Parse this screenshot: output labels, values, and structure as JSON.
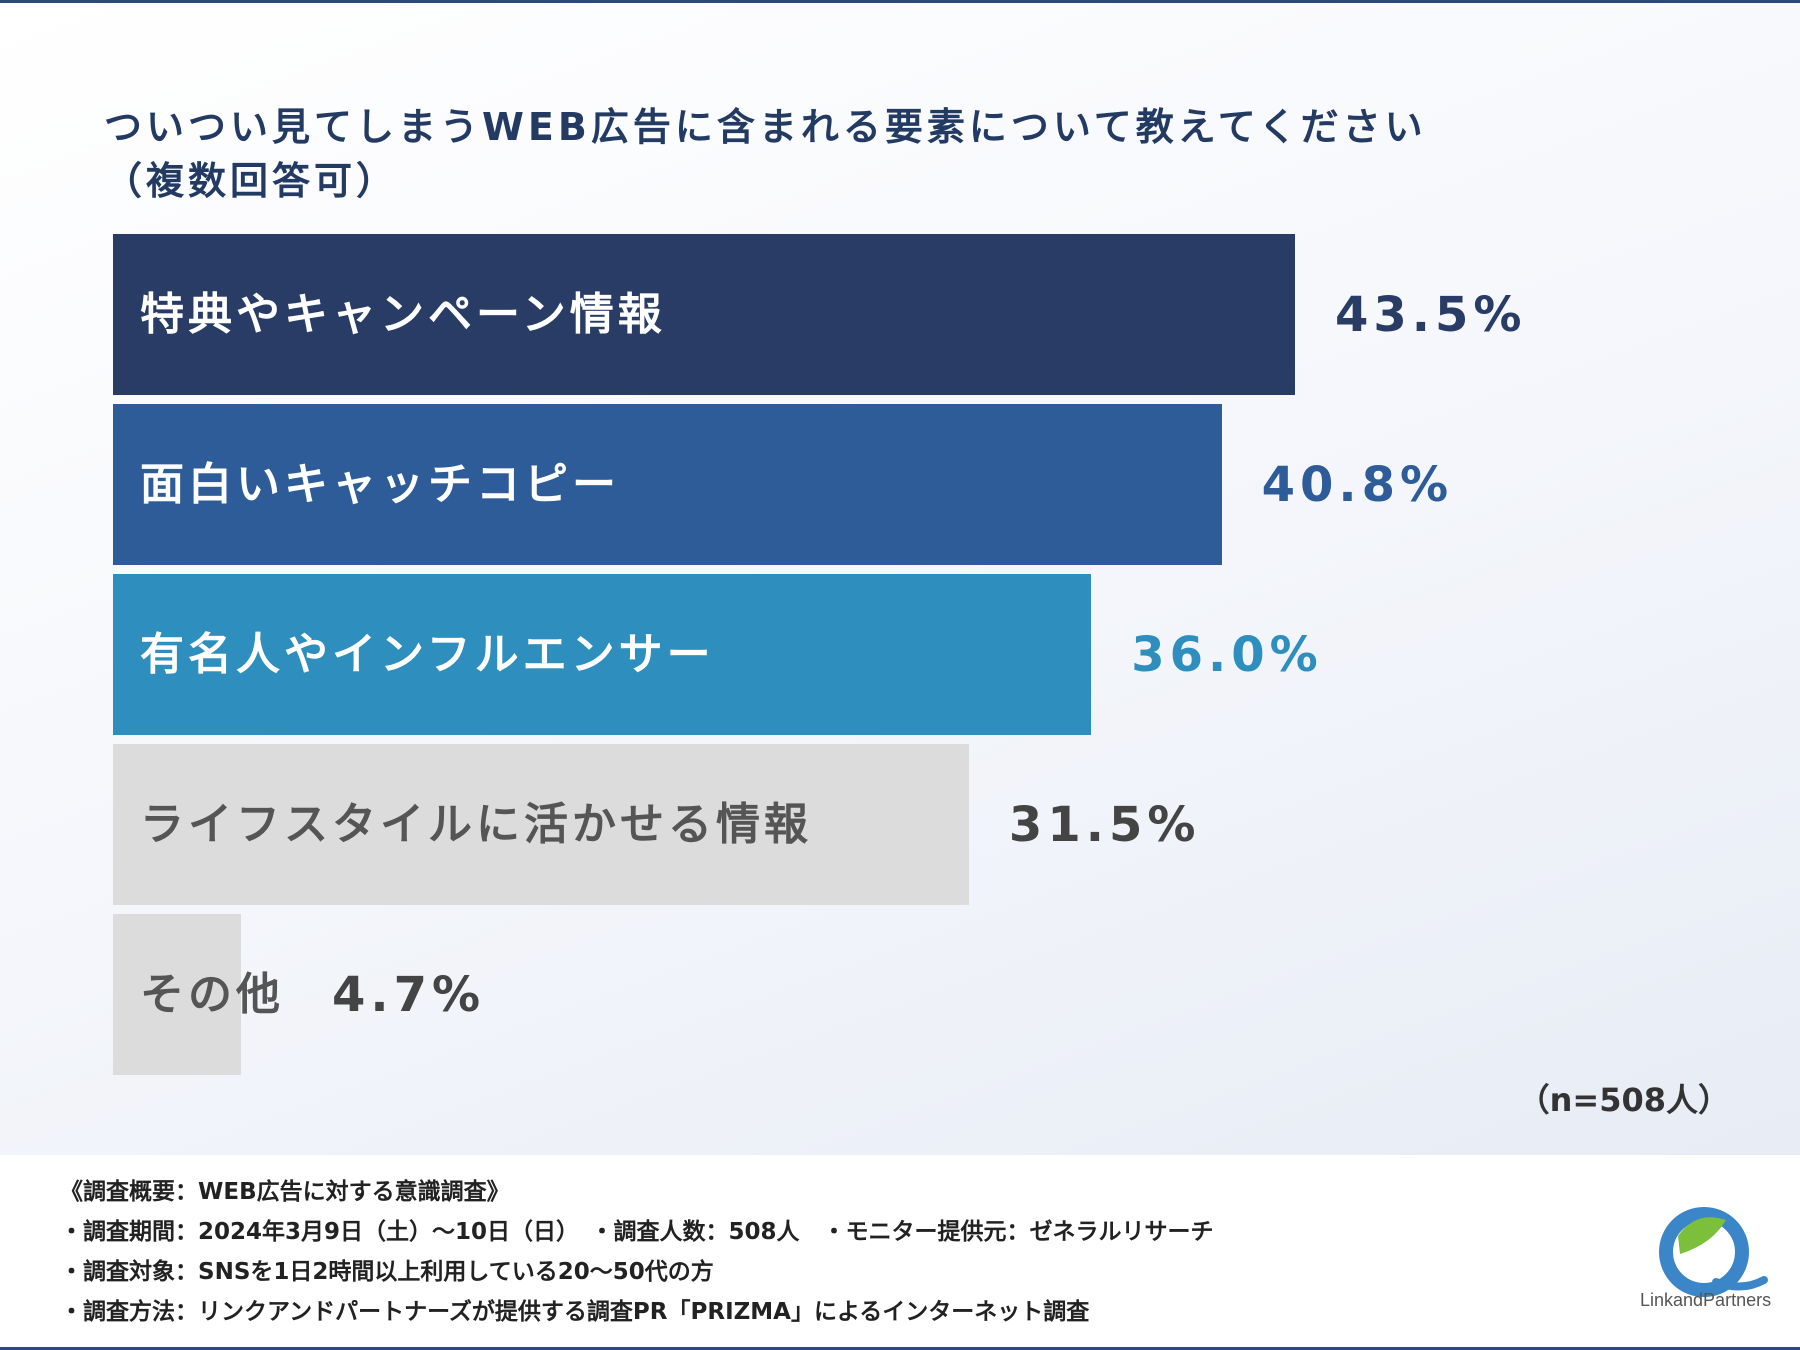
{
  "title": {
    "line1": "ついつい見てしまうWEB広告に含まれる要素について教えてください",
    "line2": "（複数回答可）"
  },
  "chart_data": {
    "type": "bar",
    "orientation": "horizontal",
    "categories": [
      "特典やキャンペーン情報",
      "面白いキャッチコピー",
      "有名人やインフルエンサー",
      "ライフスタイルに活かせる情報",
      "その他"
    ],
    "values": [
      43.5,
      40.8,
      36.0,
      31.5,
      4.7
    ],
    "value_labels": [
      "43.5%",
      "40.8%",
      "36.0%",
      "31.5%",
      "4.7%"
    ],
    "unit": "%",
    "bar_colors": [
      "#283c66",
      "#2d5c98",
      "#2e8ebd",
      "#dcdcdc",
      "#dcdcdc"
    ],
    "label_colors": [
      "#ffffff",
      "#ffffff",
      "#ffffff",
      "#555555",
      "#555555"
    ],
    "value_colors": [
      "#283c66",
      "#2d5c98",
      "#2e8ebd",
      "#444444",
      "#444444"
    ],
    "legend": "none",
    "grid": false
  },
  "sample_size": "（n=508人）",
  "notes": [
    "《調査概要：WEB広告に対する意識調査》",
    "・調査期間：2024年3月9日（土）～10日（日）　・調査人数：508人　・モニター提供元：ゼネラルリサーチ",
    "・調査対象：SNSを1日2時間以上利用している20～50代の方",
    "・調査方法：リンクアンドパートナーズが提供する調査PR「PRIZMA」によるインターネット調査"
  ],
  "logo": {
    "text": "LinkandPartners"
  }
}
